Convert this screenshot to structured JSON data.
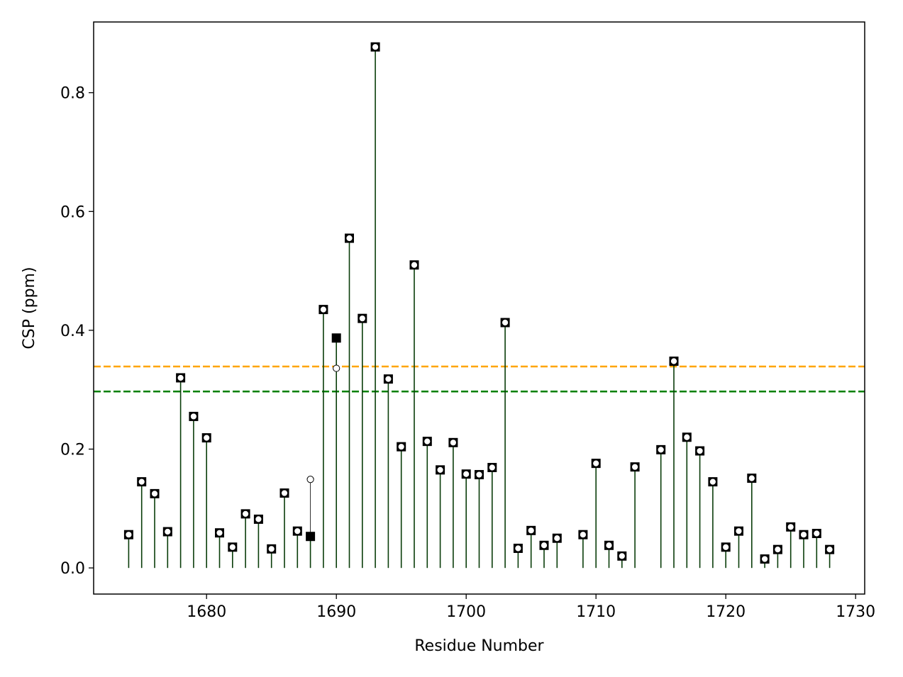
{
  "chart_data": {
    "type": "scatter",
    "xlabel": "Residue Number",
    "ylabel": "CSP (ppm)",
    "xlim": [
      1671.3,
      1730.7
    ],
    "ylim": [
      -0.044,
      0.919
    ],
    "xticks": [
      1680,
      1690,
      1700,
      1710,
      1720,
      1730
    ],
    "yticks": [
      0.0,
      0.2,
      0.4,
      0.6,
      0.8
    ],
    "grid": false,
    "legend": "none",
    "reference_lines": [
      {
        "y": 0.339,
        "color": "#FFA500",
        "style": "dashed"
      },
      {
        "y": 0.297,
        "color": "#008000",
        "style": "dashed"
      }
    ],
    "series": [
      {
        "marker": "square",
        "fill": "#000000",
        "stem_color": "#008000",
        "x": [
          1674,
          1675,
          1676,
          1677,
          1678,
          1679,
          1680,
          1681,
          1682,
          1683,
          1684,
          1685,
          1686,
          1687,
          1688,
          1689,
          1690,
          1691,
          1692,
          1693,
          1694,
          1695,
          1696,
          1697,
          1698,
          1699,
          1700,
          1701,
          1702,
          1703,
          1704,
          1705,
          1706,
          1707,
          1709,
          1710,
          1711,
          1712,
          1713,
          1715,
          1716,
          1717,
          1718,
          1719,
          1720,
          1721,
          1722,
          1723,
          1724,
          1725,
          1726,
          1727,
          1728
        ],
        "y": [
          0.056,
          0.145,
          0.125,
          0.061,
          0.32,
          0.255,
          0.219,
          0.059,
          0.035,
          0.091,
          0.082,
          0.032,
          0.126,
          0.062,
          0.053,
          0.435,
          0.387,
          0.555,
          0.42,
          0.877,
          0.318,
          0.204,
          0.51,
          0.213,
          0.165,
          0.211,
          0.158,
          0.157,
          0.169,
          0.413,
          0.033,
          0.063,
          0.038,
          0.05,
          0.056,
          0.176,
          0.038,
          0.02,
          0.17,
          0.199,
          0.348,
          0.22,
          0.197,
          0.145,
          0.035,
          0.062,
          0.151,
          0.015,
          0.031,
          0.069,
          0.056,
          0.058,
          0.031
        ]
      },
      {
        "marker": "circle",
        "fill": "#FFFFFF",
        "stem_color": "#000000",
        "x": [
          1674,
          1675,
          1676,
          1677,
          1678,
          1679,
          1680,
          1681,
          1682,
          1683,
          1684,
          1685,
          1686,
          1687,
          1688,
          1689,
          1690,
          1691,
          1692,
          1693,
          1694,
          1695,
          1696,
          1697,
          1698,
          1699,
          1700,
          1701,
          1702,
          1703,
          1704,
          1705,
          1706,
          1707,
          1709,
          1710,
          1711,
          1712,
          1713,
          1715,
          1716,
          1717,
          1718,
          1719,
          1720,
          1721,
          1722,
          1723,
          1724,
          1725,
          1726,
          1727,
          1728
        ],
        "y": [
          0.056,
          0.145,
          0.125,
          0.061,
          0.32,
          0.255,
          0.219,
          0.059,
          0.035,
          0.091,
          0.082,
          0.032,
          0.126,
          0.062,
          0.149,
          0.435,
          0.336,
          0.555,
          0.42,
          0.877,
          0.318,
          0.204,
          0.51,
          0.213,
          0.165,
          0.211,
          0.158,
          0.157,
          0.169,
          0.413,
          0.033,
          0.063,
          0.038,
          0.05,
          0.056,
          0.176,
          0.038,
          0.02,
          0.17,
          0.199,
          0.348,
          0.22,
          0.197,
          0.145,
          0.035,
          0.062,
          0.151,
          0.015,
          0.031,
          0.069,
          0.056,
          0.058,
          0.031
        ]
      }
    ]
  }
}
